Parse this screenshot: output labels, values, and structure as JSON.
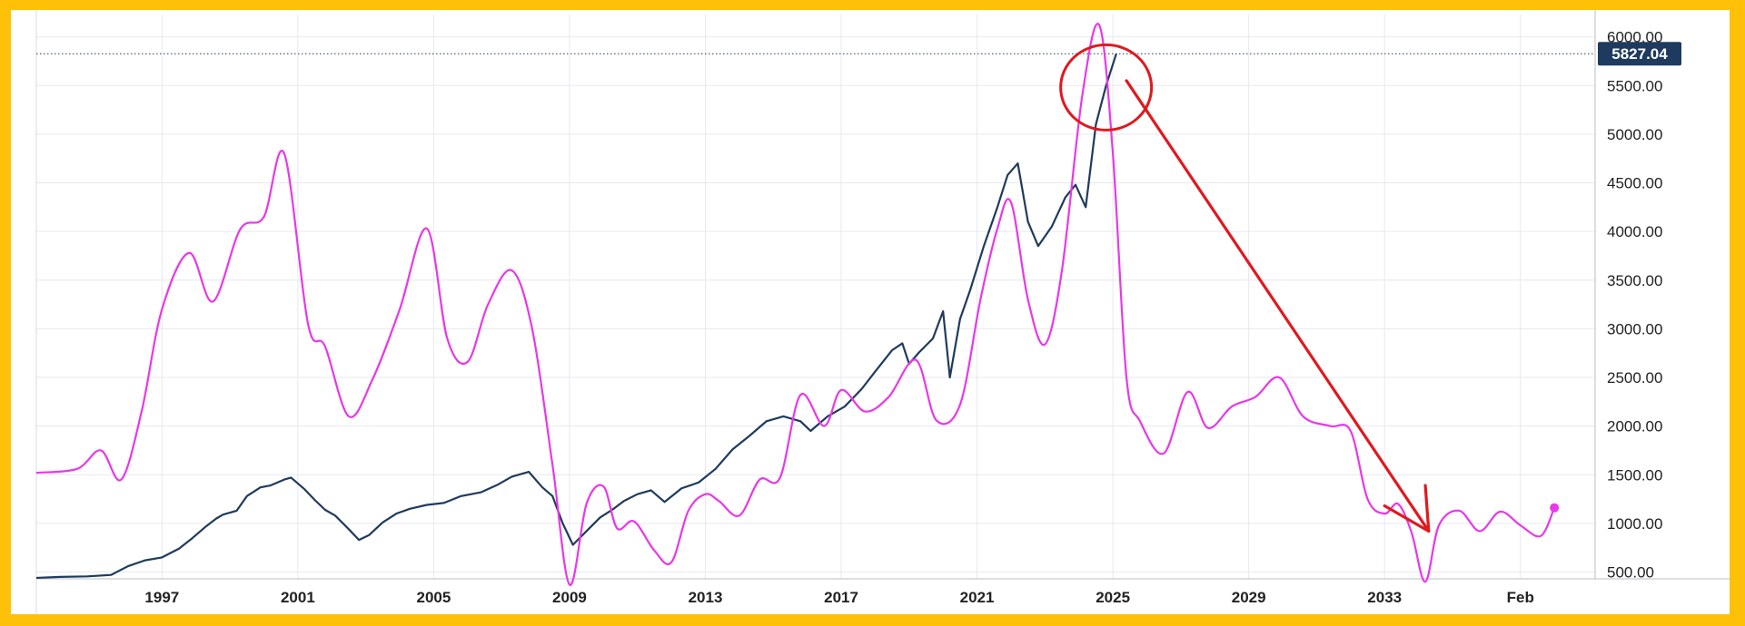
{
  "chart_data": {
    "type": "line",
    "title": "",
    "xlabel": "",
    "ylabel": "",
    "xlim": [
      1993.3,
      2039.2
    ],
    "ylim": [
      430,
      6230
    ],
    "grid": true,
    "x_tick_labels": [
      {
        "x": 1997,
        "label": "1997"
      },
      {
        "x": 2001,
        "label": "2001"
      },
      {
        "x": 2005,
        "label": "2005"
      },
      {
        "x": 2009,
        "label": "2009"
      },
      {
        "x": 2013,
        "label": "2013"
      },
      {
        "x": 2017,
        "label": "2017"
      },
      {
        "x": 2021,
        "label": "2021"
      },
      {
        "x": 2025,
        "label": "2025"
      },
      {
        "x": 2029,
        "label": "2029"
      },
      {
        "x": 2033,
        "label": "2033"
      },
      {
        "x": 2037,
        "label": "Feb"
      }
    ],
    "y_tick_labels": [
      "500.00",
      "1000.00",
      "1500.00",
      "2000.00",
      "2500.00",
      "3000.00",
      "3500.00",
      "4000.00",
      "4500.00",
      "5000.00",
      "5500.00",
      "6000.00"
    ],
    "y_ticks": [
      500,
      1000,
      1500,
      2000,
      2500,
      3000,
      3500,
      4000,
      4500,
      5000,
      5500,
      6000
    ],
    "last_price": {
      "value": 5827.04,
      "label": "5827.04",
      "color": "#1e3a5f"
    },
    "series": [
      {
        "color": "#1f3b5c",
        "x": [
          1993.3,
          1994.0,
          1994.8,
          1995.5,
          1996.0,
          1996.5,
          1997.0,
          1997.5,
          1997.9,
          1998.3,
          1998.6,
          1998.8,
          1999.2,
          1999.5,
          1999.9,
          2000.2,
          2000.6,
          2000.8,
          2001.2,
          2001.5,
          2001.8,
          2002.1,
          2002.5,
          2002.8,
          2003.1,
          2003.5,
          2003.9,
          2004.3,
          2004.8,
          2005.3,
          2005.8,
          2006.4,
          2006.9,
          2007.3,
          2007.8,
          2008.2,
          2008.5,
          2008.8,
          2009.1,
          2009.5,
          2009.9,
          2010.3,
          2010.6,
          2011.0,
          2011.4,
          2011.8,
          2012.3,
          2012.8,
          2013.3,
          2013.8,
          2014.3,
          2014.8,
          2015.3,
          2015.8,
          2016.1,
          2016.6,
          2017.1,
          2017.6,
          2018.0,
          2018.5,
          2018.8,
          2019.0,
          2019.3,
          2019.7,
          2020.0,
          2020.2,
          2020.5,
          2020.8,
          2021.2,
          2021.6,
          2021.9,
          2022.2,
          2022.5,
          2022.8,
          2023.2,
          2023.6,
          2023.9,
          2024.2,
          2024.5,
          2024.8,
          2025.1
        ],
        "values": [
          440,
          450,
          455,
          470,
          560,
          620,
          650,
          740,
          850,
          970,
          1050,
          1090,
          1130,
          1280,
          1370,
          1390,
          1450,
          1470,
          1350,
          1240,
          1140,
          1080,
          940,
          830,
          880,
          1010,
          1100,
          1150,
          1190,
          1210,
          1280,
          1320,
          1400,
          1480,
          1530,
          1370,
          1280,
          1000,
          780,
          920,
          1060,
          1150,
          1230,
          1300,
          1340,
          1220,
          1360,
          1420,
          1560,
          1760,
          1900,
          2050,
          2100,
          2050,
          1950,
          2100,
          2200,
          2380,
          2560,
          2780,
          2850,
          2640,
          2760,
          2900,
          3180,
          2500,
          3100,
          3400,
          3850,
          4250,
          4580,
          4700,
          4100,
          3850,
          4050,
          4350,
          4480,
          4250,
          5100,
          5500,
          5827.04
        ]
      },
      {
        "color": "#e838e8",
        "x": [
          1993.3,
          1994.5,
          1995.2,
          1995.8,
          1996.4,
          1997.0,
          1997.8,
          1998.5,
          1999.3,
          2000.0,
          2000.6,
          2001.3,
          2001.8,
          2002.5,
          2003.2,
          2004.0,
          2004.8,
          2005.4,
          2006.0,
          2006.6,
          2007.3,
          2007.9,
          2008.5,
          2009.0,
          2009.5,
          2010.0,
          2010.4,
          2010.9,
          2011.5,
          2012.0,
          2012.5,
          2013.0,
          2013.4,
          2014.0,
          2014.6,
          2015.2,
          2015.8,
          2016.5,
          2017.0,
          2017.7,
          2018.4,
          2019.2,
          2019.8,
          2020.5,
          2021.1,
          2021.6,
          2022.0,
          2022.5,
          2023.0,
          2023.5,
          2024.1,
          2024.6,
          2025.0,
          2025.4,
          2025.8,
          2026.5,
          2027.2,
          2027.8,
          2028.5,
          2029.2,
          2029.9,
          2030.6,
          2031.4,
          2032.0,
          2032.5,
          2033.0,
          2033.4,
          2033.8,
          2034.2,
          2034.6,
          2035.2,
          2035.8,
          2036.4,
          2037.0,
          2037.6,
          2038.0
        ],
        "values": [
          1520,
          1560,
          1750,
          1450,
          2150,
          3200,
          3780,
          3280,
          4020,
          4150,
          4800,
          3050,
          2820,
          2100,
          2480,
          3200,
          4030,
          2900,
          2660,
          3250,
          3600,
          3000,
          1600,
          370,
          1200,
          1380,
          950,
          1020,
          720,
          600,
          1130,
          1300,
          1230,
          1080,
          1450,
          1470,
          2320,
          2000,
          2370,
          2150,
          2300,
          2680,
          2060,
          2220,
          3300,
          4030,
          4300,
          3300,
          2840,
          3600,
          5400,
          6120,
          4800,
          2500,
          2050,
          1720,
          2350,
          1980,
          2200,
          2300,
          2500,
          2100,
          2000,
          1950,
          1250,
          1100,
          1200,
          900,
          400,
          980,
          1130,
          920,
          1120,
          980,
          870,
          1160
        ]
      }
    ],
    "annotations": {
      "circle_color": "#e0191f",
      "arrow_color": "#e0191f",
      "end_marker_color": "#e838e8",
      "price_line_color": "#1e3a5f"
    }
  }
}
